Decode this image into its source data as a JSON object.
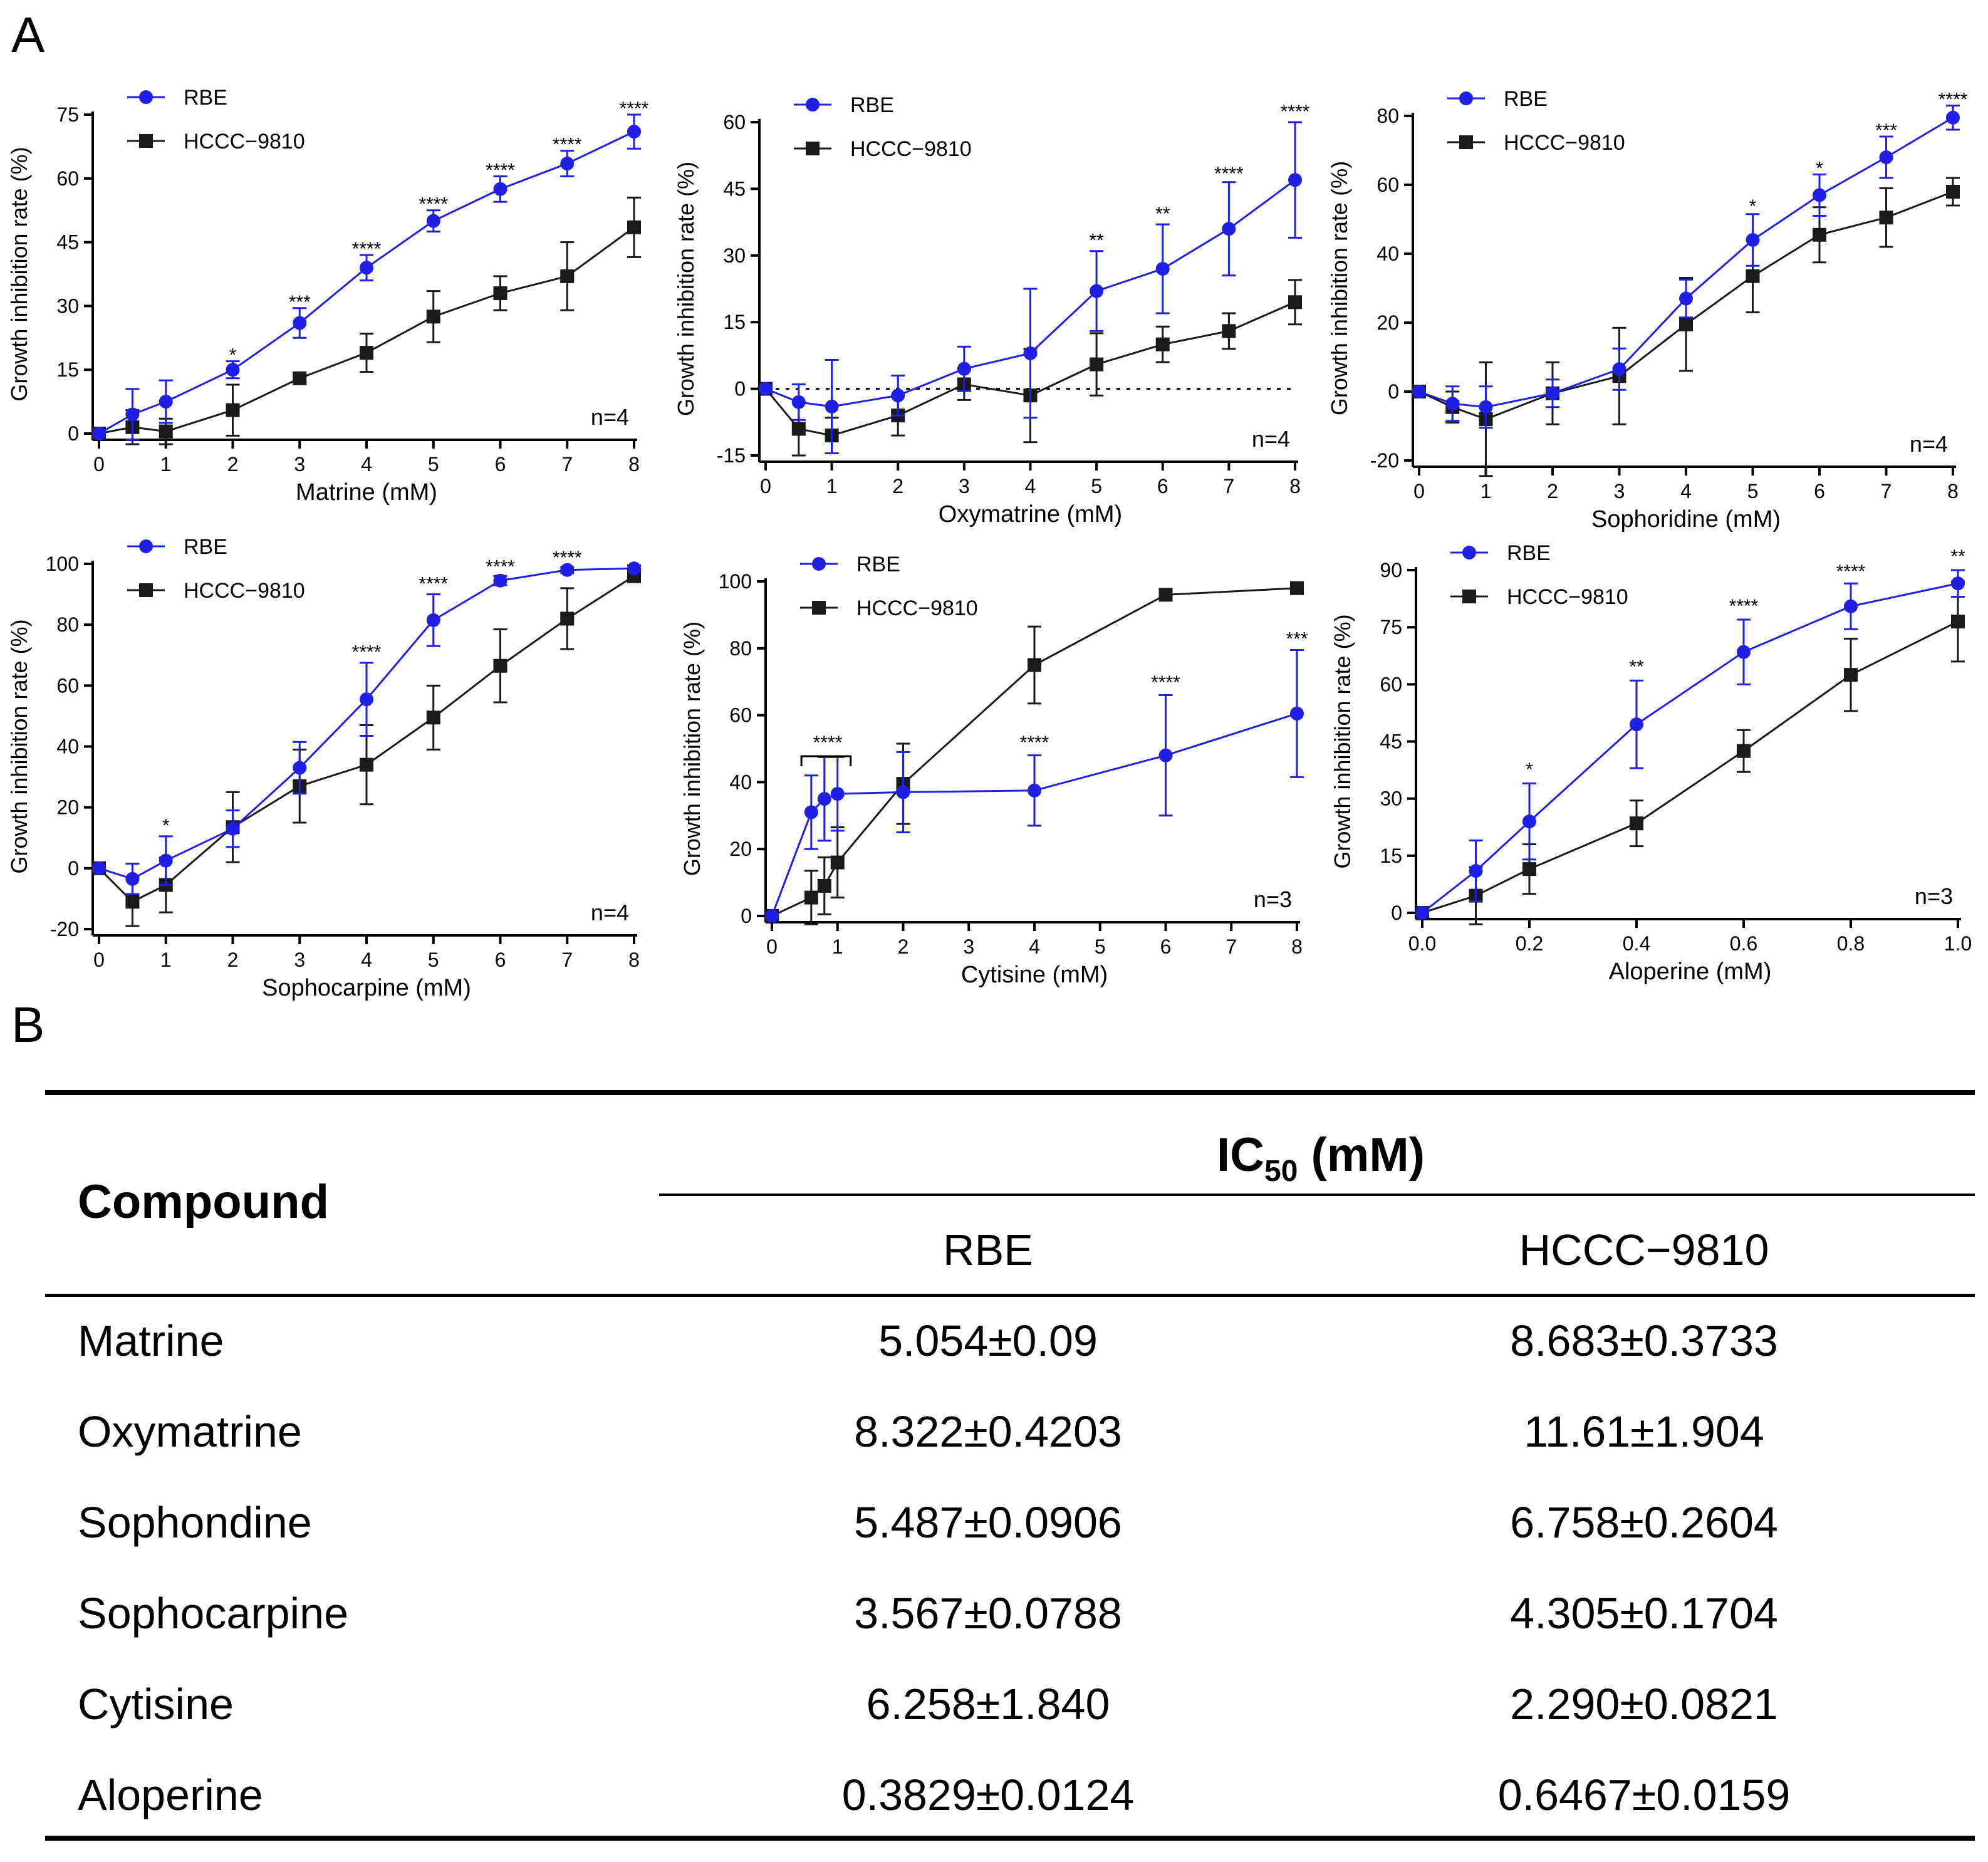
{
  "panel_labels": {
    "a": "A",
    "b": "B"
  },
  "chart_data": [
    {
      "type": "line",
      "xlabel": "Matrine (mM)",
      "ylabel": "Growth inhibition rate (%)",
      "xlim": [
        0,
        8
      ],
      "ylim": [
        0,
        75
      ],
      "xticks": [
        0,
        1,
        2,
        3,
        4,
        5,
        6,
        7,
        8
      ],
      "yticks": [
        0,
        15,
        30,
        45,
        60,
        75
      ],
      "n_label": "n=4",
      "zero_line": false,
      "series": [
        {
          "name": "RBE",
          "color": "#1f1fe6",
          "marker": "circle",
          "x": [
            0,
            0.5,
            1,
            2,
            3,
            4,
            5,
            6,
            7,
            8
          ],
          "y": [
            0,
            4.5,
            7.5,
            15,
            26,
            39,
            50,
            57.5,
            63.5,
            71
          ],
          "err": [
            0,
            6,
            5,
            2,
            3.5,
            3,
            2.5,
            3,
            3,
            4
          ]
        },
        {
          "name": "HCCC−9810",
          "color": "#1a1a1a",
          "marker": "square",
          "x": [
            0,
            0.5,
            1,
            2,
            3,
            4,
            5,
            6,
            7,
            8
          ],
          "y": [
            0,
            1.5,
            0.5,
            5.5,
            13,
            19,
            27.5,
            33,
            37,
            48.5
          ],
          "err": [
            0,
            4,
            3,
            6,
            1,
            4.5,
            6,
            4,
            8,
            7
          ]
        }
      ],
      "annotations": [
        {
          "x": 2,
          "y": 17,
          "text": "*"
        },
        {
          "x": 3,
          "y": 29.5,
          "text": "***"
        },
        {
          "x": 4,
          "y": 42,
          "text": "****"
        },
        {
          "x": 5,
          "y": 52.5,
          "text": "****"
        },
        {
          "x": 6,
          "y": 60.5,
          "text": "****"
        },
        {
          "x": 7,
          "y": 66.5,
          "text": "****"
        },
        {
          "x": 8,
          "y": 75,
          "text": "****"
        }
      ]
    },
    {
      "type": "line",
      "xlabel": "Oxymatrine (mM)",
      "ylabel": "Growth inhibition rate (%)",
      "xlim": [
        0,
        8
      ],
      "ylim": [
        -15,
        60
      ],
      "xticks": [
        0,
        1,
        2,
        3,
        4,
        5,
        6,
        7,
        8
      ],
      "yticks": [
        -15,
        0,
        15,
        30,
        45,
        60
      ],
      "n_label": "n=4",
      "zero_line": true,
      "series": [
        {
          "name": "RBE",
          "color": "#1f1fe6",
          "marker": "circle",
          "x": [
            0,
            0.5,
            1,
            2,
            3,
            4,
            5,
            6,
            7,
            8
          ],
          "y": [
            0,
            -3,
            -4,
            -1.5,
            4.5,
            8,
            22,
            27,
            36,
            47
          ],
          "err": [
            0,
            4,
            10.5,
            4.5,
            5,
            14.5,
            9,
            10,
            10.5,
            13
          ]
        },
        {
          "name": "HCCC−9810",
          "color": "#1a1a1a",
          "marker": "square",
          "x": [
            0,
            0.5,
            1,
            2,
            3,
            4,
            5,
            6,
            7,
            8
          ],
          "y": [
            0,
            -9,
            -10.5,
            -6,
            1,
            -1.5,
            5.5,
            10,
            13,
            19.5
          ],
          "err": [
            0,
            6,
            4,
            4.5,
            3.5,
            10.5,
            7,
            4,
            4,
            5
          ]
        }
      ],
      "annotations": [
        {
          "x": 5,
          "y": 32,
          "text": "**"
        },
        {
          "x": 6,
          "y": 38,
          "text": "**"
        },
        {
          "x": 7,
          "y": 47,
          "text": "****"
        },
        {
          "x": 8,
          "y": 61,
          "text": "****"
        }
      ]
    },
    {
      "type": "line",
      "xlabel": "Sophoridine (mM)",
      "ylabel": "Growth inhibition rate (%)",
      "xlim": [
        0,
        8
      ],
      "ylim": [
        -20,
        80
      ],
      "xticks": [
        0,
        1,
        2,
        3,
        4,
        5,
        6,
        7,
        8
      ],
      "yticks": [
        -20,
        0,
        20,
        40,
        60,
        80
      ],
      "n_label": "n=4",
      "zero_line": false,
      "series": [
        {
          "name": "RBE",
          "color": "#1f1fe6",
          "marker": "circle",
          "x": [
            0,
            0.5,
            1,
            2,
            3,
            4,
            5,
            6,
            7,
            8
          ],
          "y": [
            0,
            -3.5,
            -4.5,
            -0.5,
            6.5,
            27,
            44,
            57,
            68,
            79.5
          ],
          "err": [
            0,
            5,
            6,
            4,
            6,
            5.5,
            7.5,
            6,
            6,
            3.5
          ]
        },
        {
          "name": "HCCC−9810",
          "color": "#1a1a1a",
          "marker": "square",
          "x": [
            0,
            0.5,
            1,
            2,
            3,
            4,
            5,
            6,
            7,
            8
          ],
          "y": [
            0,
            -4.5,
            -8,
            -0.5,
            4.5,
            19.5,
            33.5,
            45.5,
            50.5,
            58
          ],
          "err": [
            0,
            4.5,
            16.5,
            9,
            14,
            13.5,
            10.5,
            8,
            8.5,
            4
          ]
        }
      ],
      "annotations": [
        {
          "x": 5,
          "y": 52,
          "text": "*"
        },
        {
          "x": 6,
          "y": 63,
          "text": "*"
        },
        {
          "x": 7,
          "y": 74,
          "text": "***"
        },
        {
          "x": 8,
          "y": 83,
          "text": "****"
        }
      ]
    },
    {
      "type": "line",
      "xlabel": "Sophocarpine (mM)",
      "ylabel": "Growth inhibition rate (%)",
      "xlim": [
        0,
        8
      ],
      "ylim": [
        -20,
        100
      ],
      "xticks": [
        0,
        1,
        2,
        3,
        4,
        5,
        6,
        7,
        8
      ],
      "yticks": [
        -20,
        0,
        20,
        40,
        60,
        80,
        100
      ],
      "n_label": "n=4",
      "zero_line": false,
      "series": [
        {
          "name": "RBE",
          "color": "#1f1fe6",
          "marker": "circle",
          "x": [
            0,
            0.5,
            1,
            2,
            3,
            4,
            5,
            6,
            7,
            8
          ],
          "y": [
            0,
            -3.5,
            2.5,
            13,
            33,
            55.5,
            81.5,
            94.5,
            98,
            98.5
          ],
          "err": [
            0,
            5,
            8,
            6,
            8.5,
            12,
            8.5,
            1.5,
            1,
            1
          ]
        },
        {
          "name": "HCCC−9810",
          "color": "#1a1a1a",
          "marker": "square",
          "x": [
            0,
            0.5,
            1,
            2,
            3,
            4,
            5,
            6,
            7,
            8
          ],
          "y": [
            0,
            -11,
            -5.5,
            13.5,
            27,
            34,
            49.5,
            66.5,
            82,
            96
          ],
          "err": [
            0,
            8,
            9,
            11.5,
            12,
            13,
            10.5,
            12,
            10,
            2
          ]
        }
      ],
      "annotations": [
        {
          "x": 1,
          "y": 12,
          "text": "*"
        },
        {
          "x": 4,
          "y": 69,
          "text": "****"
        },
        {
          "x": 5,
          "y": 91.5,
          "text": "****"
        },
        {
          "x": 6,
          "y": 97,
          "text": "****"
        },
        {
          "x": 7,
          "y": 100,
          "text": "****"
        }
      ]
    },
    {
      "type": "line",
      "xlabel": "Cytisine (mM)",
      "ylabel": "Growth inhibition rate (%)",
      "xlim": [
        0,
        8
      ],
      "ylim": [
        0,
        100
      ],
      "xticks": [
        0,
        1,
        2,
        3,
        4,
        5,
        6,
        7,
        8
      ],
      "yticks": [
        0,
        20,
        40,
        60,
        80,
        100
      ],
      "n_label": "n=3",
      "zero_line": false,
      "series": [
        {
          "name": "RBE",
          "color": "#1f1fe6",
          "marker": "circle",
          "x": [
            0,
            0.6,
            0.8,
            1,
            2,
            4,
            6,
            8
          ],
          "y": [
            0,
            31,
            35,
            36.5,
            37,
            37.5,
            48,
            60.5
          ],
          "err": [
            0,
            11,
            12.5,
            11,
            12,
            10.5,
            18,
            19
          ]
        },
        {
          "name": "HCCC−9810",
          "color": "#1a1a1a",
          "marker": "square",
          "x": [
            0,
            0.6,
            0.8,
            1,
            2,
            4,
            6,
            8
          ],
          "y": [
            0,
            5.5,
            9,
            16,
            39.5,
            75,
            96,
            98
          ],
          "err": [
            0,
            8,
            8.5,
            10.5,
            12,
            11.5,
            1,
            1
          ]
        }
      ],
      "annotations": [
        {
          "x": 0.85,
          "y": 50,
          "text": "****"
        },
        {
          "x": 4,
          "y": 50,
          "text": "****"
        },
        {
          "x": 6,
          "y": 68,
          "text": "****"
        },
        {
          "x": 8,
          "y": 81,
          "text": "***"
        }
      ],
      "bracket": {
        "x1": 0.45,
        "x2": 1.2,
        "y": 50
      }
    },
    {
      "type": "line",
      "xlabel": "Aloperine (mM)",
      "ylabel": "Growth inhibition rate (%)",
      "xlim": [
        0,
        1
      ],
      "ylim": [
        0,
        90
      ],
      "xticks": [
        0.0,
        0.2,
        0.4,
        0.6,
        0.8,
        1.0
      ],
      "yticks": [
        0,
        15,
        30,
        45,
        60,
        75,
        90
      ],
      "n_label": "n=3",
      "zero_line": false,
      "series": [
        {
          "name": "RBE",
          "color": "#1f1fe6",
          "marker": "circle",
          "x": [
            0,
            0.1,
            0.2,
            0.4,
            0.6,
            0.8,
            1.0
          ],
          "y": [
            0,
            11,
            24,
            49.5,
            68.5,
            80.5,
            86.5
          ],
          "err": [
            0,
            8,
            10,
            11.5,
            8.5,
            6,
            3.5
          ]
        },
        {
          "name": "HCCC−9810",
          "color": "#1a1a1a",
          "marker": "square",
          "x": [
            0,
            0.1,
            0.2,
            0.4,
            0.6,
            0.8,
            1.0
          ],
          "y": [
            0,
            4.5,
            11.5,
            23.5,
            42.5,
            62.5,
            76.5
          ],
          "err": [
            0,
            7.5,
            6.5,
            6,
            5.5,
            9.5,
            10.5
          ]
        }
      ],
      "annotations": [
        {
          "x": 0.2,
          "y": 36,
          "text": "*"
        },
        {
          "x": 0.4,
          "y": 63,
          "text": "**"
        },
        {
          "x": 0.6,
          "y": 79,
          "text": "****"
        },
        {
          "x": 0.8,
          "y": 88,
          "text": "****"
        },
        {
          "x": 1.0,
          "y": 92,
          "text": "**"
        }
      ]
    }
  ],
  "table": {
    "compound_header": "Compound",
    "ic50_header_main": "IC",
    "ic50_header_sub": "50",
    "ic50_header_unit": " (mM)",
    "col_rbe": "RBE",
    "col_hccc": "HCCC−9810",
    "rows": [
      {
        "compound": "Matrine",
        "rbe": "5.054±0.09",
        "hccc": "8.683±0.3733"
      },
      {
        "compound": "Oxymatrine",
        "rbe": "8.322±0.4203",
        "hccc": "11.61±1.904"
      },
      {
        "compound": "Sophondine",
        "rbe": "5.487±0.0906",
        "hccc": "6.758±0.2604"
      },
      {
        "compound": "Sophocarpine",
        "rbe": "3.567±0.0788",
        "hccc": "4.305±0.1704"
      },
      {
        "compound": "Cytisine",
        "rbe": "6.258±1.840",
        "hccc": "2.290±0.0821"
      },
      {
        "compound": "Aloperine",
        "rbe": "0.3829±0.0124",
        "hccc": "0.6467±0.0159"
      }
    ]
  }
}
